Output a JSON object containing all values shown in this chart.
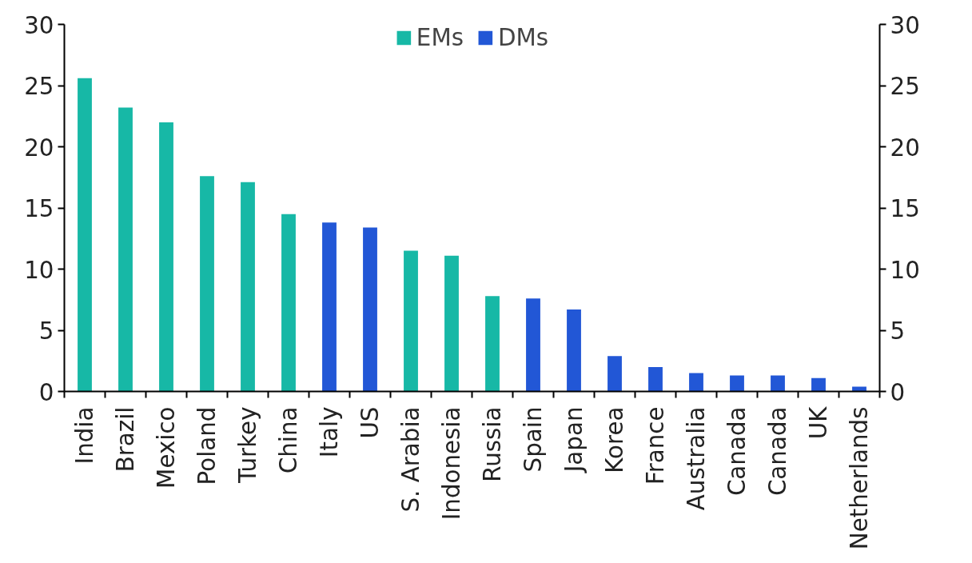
{
  "chart_data": {
    "type": "bar",
    "stacked": true,
    "categories": [
      "India",
      "Brazil",
      "Mexico",
      "Poland",
      "Turkey",
      "China",
      "Italy",
      "US",
      "S. Arabia",
      "Indonesia",
      "Russia",
      "Spain",
      "Japan",
      "Korea",
      "France",
      "Australia",
      "Canada",
      "Canada",
      "UK",
      "Netherlands"
    ],
    "series": [
      {
        "name": "EMs",
        "color": "#17b8a6",
        "values": [
          25.6,
          23.2,
          22.0,
          17.6,
          17.1,
          14.5,
          null,
          null,
          11.5,
          11.1,
          7.8,
          null,
          null,
          null,
          null,
          null,
          null,
          null,
          null,
          null
        ]
      },
      {
        "name": "DMs",
        "color": "#2257d6",
        "values": [
          null,
          null,
          null,
          null,
          null,
          null,
          13.8,
          13.4,
          null,
          null,
          null,
          7.6,
          6.7,
          2.9,
          2.0,
          1.5,
          1.3,
          1.3,
          1.1,
          0.4
        ]
      }
    ],
    "ylim": [
      0,
      30
    ],
    "yticks": [
      0,
      5,
      10,
      15,
      20,
      25,
      30
    ],
    "y2lim": [
      0,
      30
    ],
    "y2ticks": [
      0,
      5,
      10,
      15,
      20,
      25,
      30
    ],
    "grid": false,
    "legend": "top"
  }
}
